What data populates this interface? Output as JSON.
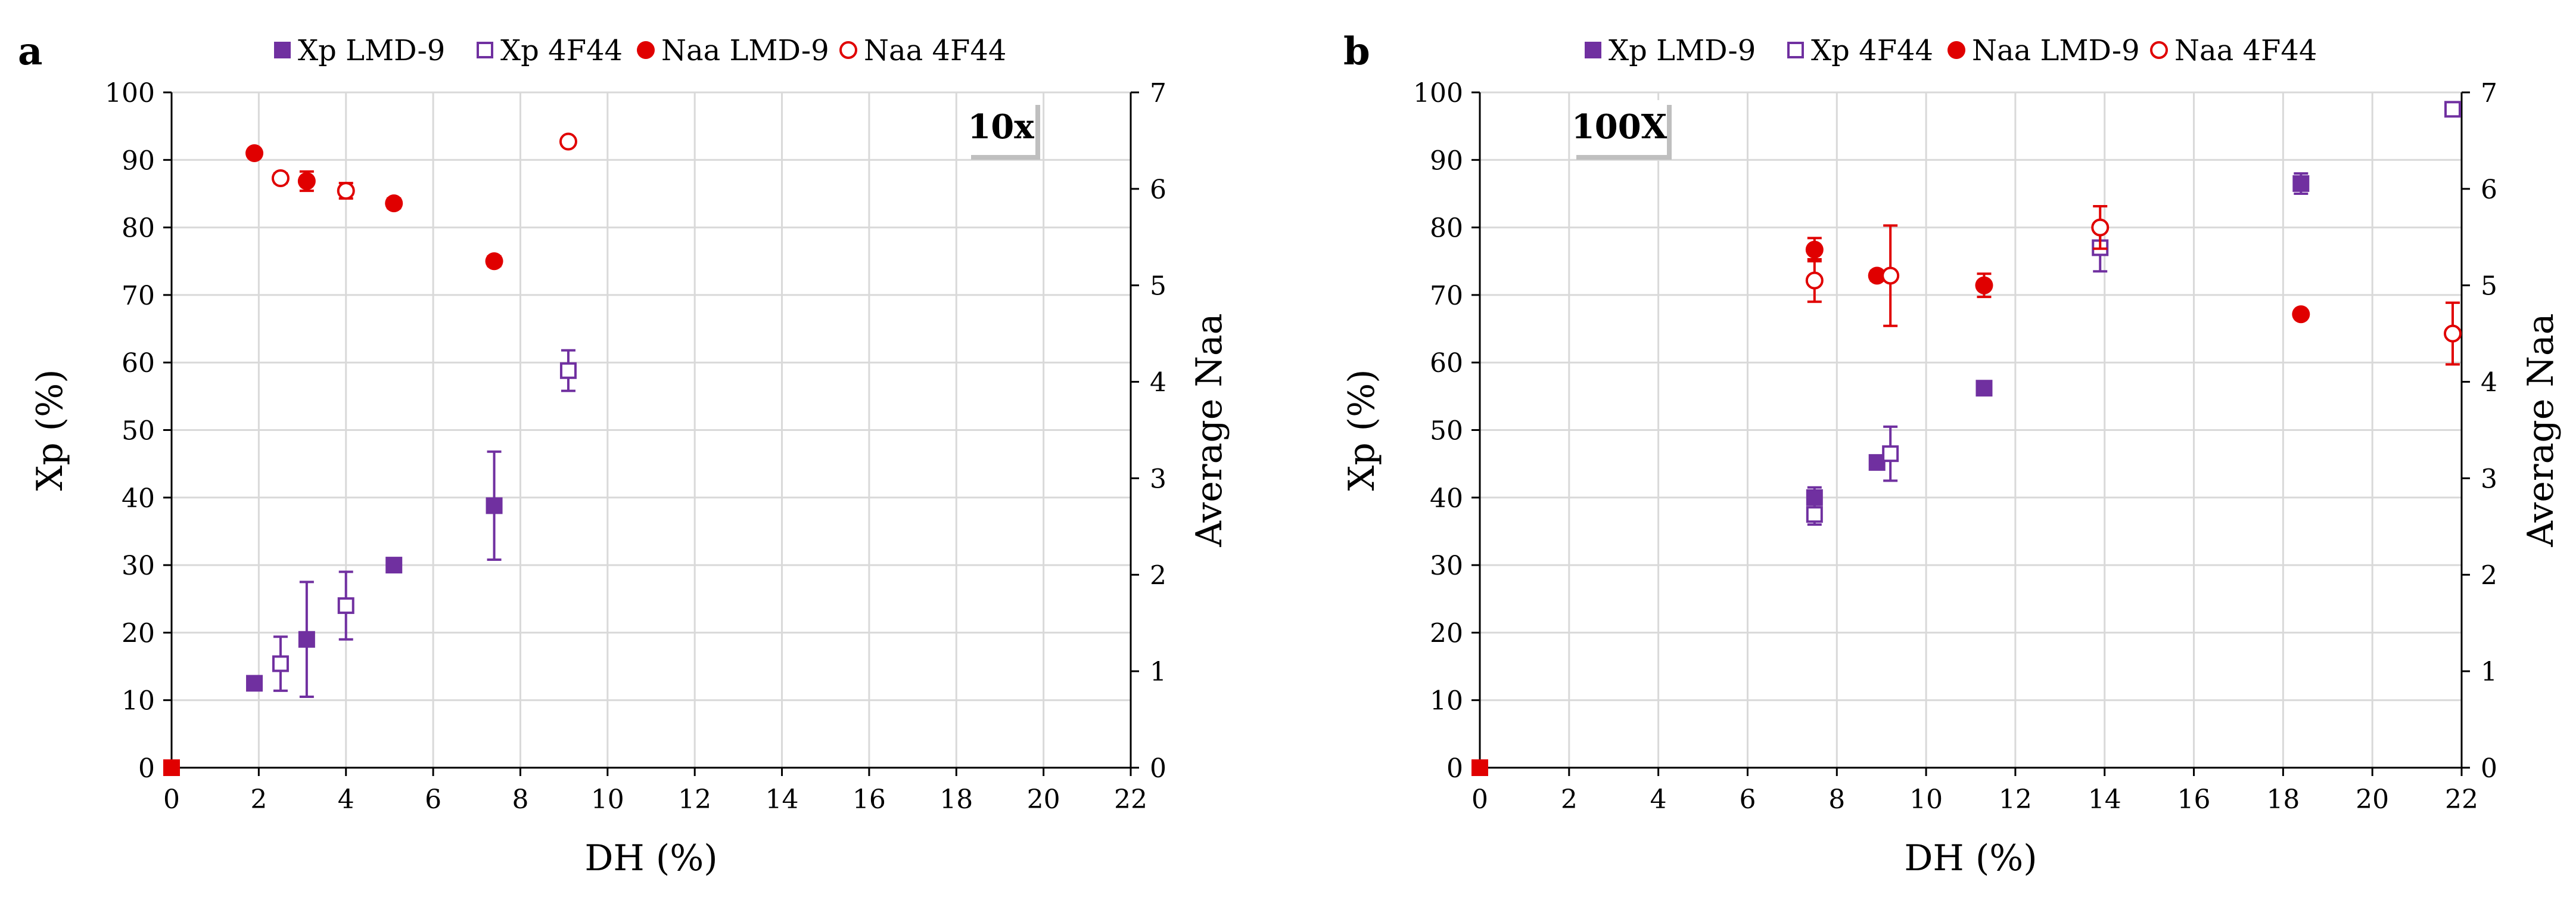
{
  "colors": {
    "xp": "#7030A0",
    "naa": "#E00000",
    "grid": "#D9D9D9",
    "axis": "#000000"
  },
  "legend": {
    "entries": [
      {
        "label": "Xp LMD-9",
        "marker": "square-filled",
        "color": "#7030A0"
      },
      {
        "label": "Xp 4F44",
        "marker": "square-open",
        "color": "#7030A0"
      },
      {
        "label": "Naa LMD-9",
        "marker": "circle-filled",
        "color": "#E00000"
      },
      {
        "label": "Naa 4F44",
        "marker": "circle-open",
        "color": "#E00000"
      }
    ]
  },
  "chart_data": [
    {
      "panel": "a",
      "type": "scatter",
      "badge": "10x",
      "xlabel": "DH (%)",
      "ylabel": "Xp (%)",
      "y2label": "Average Naa",
      "xlim": [
        0,
        22
      ],
      "xticks": [
        0,
        2,
        4,
        6,
        8,
        10,
        12,
        14,
        16,
        18,
        20,
        22
      ],
      "ylim": [
        0,
        100
      ],
      "yticks": [
        0,
        10,
        20,
        30,
        40,
        50,
        60,
        70,
        80,
        90,
        100
      ],
      "y2lim": [
        0,
        7
      ],
      "y2ticks": [
        0,
        1,
        2,
        3,
        4,
        5,
        6,
        7
      ],
      "grid": true,
      "legend_position": "top",
      "origin_point": {
        "x": 0,
        "y": 0
      },
      "series": [
        {
          "name": "Xp LMD-9",
          "axis": "left",
          "marker": "square-filled",
          "points": [
            {
              "x": 1.9,
              "y": 12.5,
              "err": 0
            },
            {
              "x": 3.1,
              "y": 19,
              "err": 8.5
            },
            {
              "x": 5.1,
              "y": 30,
              "err": 1
            },
            {
              "x": 7.4,
              "y": 38.8,
              "err": 8
            }
          ]
        },
        {
          "name": "Xp 4F44",
          "axis": "left",
          "marker": "square-open",
          "points": [
            {
              "x": 2.5,
              "y": 15.4,
              "err": 4
            },
            {
              "x": 4.0,
              "y": 24,
              "err": 5
            },
            {
              "x": 9.1,
              "y": 58.8,
              "err": 3
            }
          ]
        },
        {
          "name": "Naa LMD-9",
          "axis": "right",
          "marker": "circle-filled",
          "points": [
            {
              "x": 1.9,
              "y": 6.37,
              "err": 0
            },
            {
              "x": 3.1,
              "y": 6.08,
              "err": 0.1
            },
            {
              "x": 5.1,
              "y": 5.85,
              "err": 0.05
            },
            {
              "x": 7.4,
              "y": 5.25,
              "err": 0.05
            }
          ]
        },
        {
          "name": "Naa 4F44",
          "axis": "right",
          "marker": "circle-open",
          "points": [
            {
              "x": 2.5,
              "y": 6.11,
              "err": 0.05
            },
            {
              "x": 4.0,
              "y": 5.98,
              "err": 0.08
            },
            {
              "x": 9.1,
              "y": 6.49,
              "err": 0.04
            }
          ]
        }
      ]
    },
    {
      "panel": "b",
      "type": "scatter",
      "badge": "100X",
      "xlabel": "DH (%)",
      "ylabel": "Xp (%)",
      "y2label": "Average Naa",
      "xlim": [
        0,
        22
      ],
      "xticks": [
        0,
        2,
        4,
        6,
        8,
        10,
        12,
        14,
        16,
        18,
        20,
        22
      ],
      "ylim": [
        0,
        100
      ],
      "yticks": [
        0,
        10,
        20,
        30,
        40,
        50,
        60,
        70,
        80,
        90,
        100
      ],
      "y2lim": [
        0,
        7
      ],
      "y2ticks": [
        0,
        1,
        2,
        3,
        4,
        5,
        6,
        7
      ],
      "grid": true,
      "legend_position": "top",
      "origin_point": {
        "x": 0,
        "y": 0
      },
      "series": [
        {
          "name": "Xp LMD-9",
          "axis": "left",
          "marker": "square-filled",
          "points": [
            {
              "x": 7.5,
              "y": 40,
              "err": 1.5
            },
            {
              "x": 8.9,
              "y": 45.2,
              "err": 1
            },
            {
              "x": 11.3,
              "y": 56.2,
              "err": 1
            },
            {
              "x": 18.4,
              "y": 86.5,
              "err": 1.5
            }
          ]
        },
        {
          "name": "Xp 4F44",
          "axis": "left",
          "marker": "square-open",
          "points": [
            {
              "x": 7.5,
              "y": 37.5,
              "err": 1.5
            },
            {
              "x": 9.2,
              "y": 46.5,
              "err": 4
            },
            {
              "x": 13.9,
              "y": 77,
              "err": 3.5
            },
            {
              "x": 21.8,
              "y": 97.5,
              "err": 0.5
            }
          ]
        },
        {
          "name": "Naa LMD-9",
          "axis": "right",
          "marker": "circle-filled",
          "points": [
            {
              "x": 7.5,
              "y": 5.37,
              "err": 0.12
            },
            {
              "x": 8.9,
              "y": 5.1,
              "err": 0.05
            },
            {
              "x": 11.3,
              "y": 5.0,
              "err": 0.12
            },
            {
              "x": 18.4,
              "y": 4.7,
              "err": 0.03
            }
          ]
        },
        {
          "name": "Naa 4F44",
          "axis": "right",
          "marker": "circle-open",
          "points": [
            {
              "x": 7.5,
              "y": 5.05,
              "err": 0.22
            },
            {
              "x": 9.2,
              "y": 5.1,
              "err": 0.52
            },
            {
              "x": 13.9,
              "y": 5.6,
              "err": 0.22
            },
            {
              "x": 21.8,
              "y": 4.5,
              "err": 0.32
            }
          ]
        }
      ]
    }
  ]
}
